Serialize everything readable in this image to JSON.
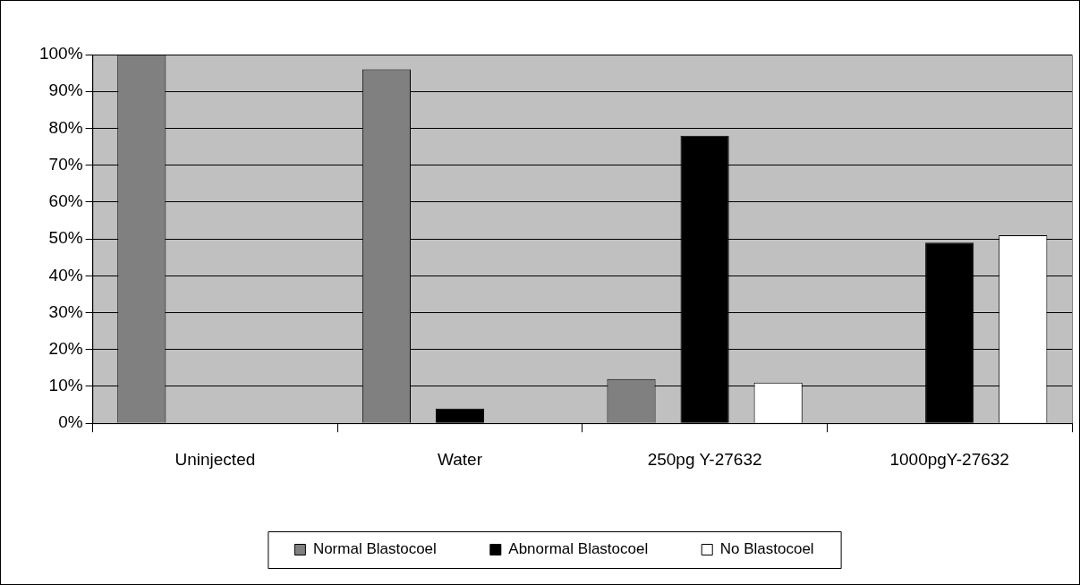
{
  "chart_data": {
    "type": "bar",
    "categories": [
      "Uninjected",
      "Water",
      "250pg Y-27632",
      "1000pgY-27632"
    ],
    "series": [
      {
        "name": "Normal Blastocoel",
        "color": "#808080",
        "values": [
          100,
          96,
          12,
          null
        ]
      },
      {
        "name": "Abnormal Blastocoel",
        "color": "#000000",
        "values": [
          null,
          4,
          78,
          49
        ]
      },
      {
        "name": "No Blastocoel",
        "color": "#ffffff",
        "values": [
          null,
          null,
          11,
          51
        ]
      }
    ],
    "ylim": [
      0,
      100
    ],
    "yticks": [
      {
        "value": 0,
        "label": "0%"
      },
      {
        "value": 10,
        "label": "10%"
      },
      {
        "value": 20,
        "label": "20%"
      },
      {
        "value": 30,
        "label": "30%"
      },
      {
        "value": 40,
        "label": "40%"
      },
      {
        "value": 50,
        "label": "50%"
      },
      {
        "value": 60,
        "label": "60%"
      },
      {
        "value": 70,
        "label": "70%"
      },
      {
        "value": 80,
        "label": "80%"
      },
      {
        "value": 90,
        "label": "90%"
      },
      {
        "value": 100,
        "label": "100%"
      }
    ],
    "grid": "y",
    "legend": "bottom"
  }
}
